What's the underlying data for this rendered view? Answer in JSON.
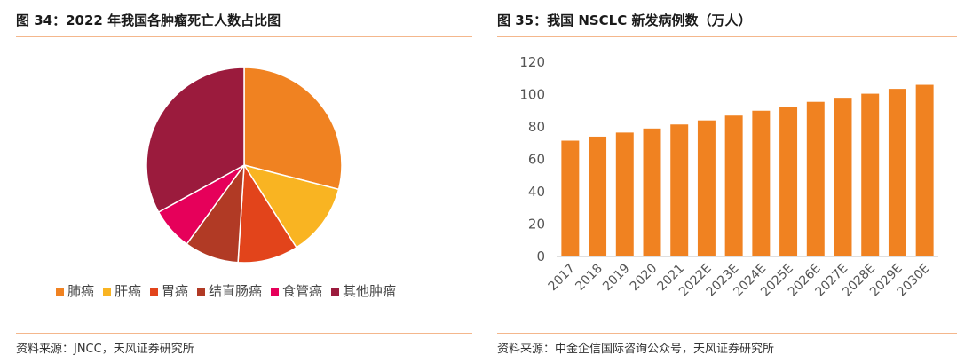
{
  "left_panel": {
    "title": "图 34：2022 年我国各肿瘤死亡人数占比图",
    "source": "资料来源：JNCC，天风证券研究所"
  },
  "right_panel": {
    "title": "图 35：我国 NSCLC 新发病例数（万人）",
    "source": "资料来源：中金企信国际咨询公众号，天风证券研究所"
  },
  "chart_data": [
    {
      "type": "pie",
      "title": "图 34：2022 年我国各肿瘤死亡人数占比图",
      "legend_position": "bottom",
      "categories": [
        "肺癌",
        "肝癌",
        "胃癌",
        "结直肠癌",
        "食管癌",
        "其他肿瘤"
      ],
      "values": [
        29,
        12,
        10,
        9,
        7,
        33
      ],
      "colors": [
        "#f08221",
        "#f9b422",
        "#e2441b",
        "#b13a25",
        "#e6005a",
        "#9b1b3d"
      ]
    },
    {
      "type": "bar",
      "title": "图 35：我国 NSCLC 新发病例数（万人）",
      "categories": [
        "2017",
        "2018",
        "2019",
        "2020",
        "2021",
        "2022E",
        "2023E",
        "2024E",
        "2025E",
        "2026E",
        "2027E",
        "2028E",
        "2029E",
        "2030E"
      ],
      "values": [
        71.5,
        74,
        76.5,
        79,
        81.5,
        84,
        87,
        90,
        92.5,
        95.5,
        98,
        100.5,
        103.5,
        106
      ],
      "ylim": [
        0,
        120
      ],
      "yticks": [
        "0",
        "20",
        "40",
        "60",
        "80",
        "100",
        "120"
      ],
      "grid": false,
      "bar_color": "#f08221"
    }
  ]
}
